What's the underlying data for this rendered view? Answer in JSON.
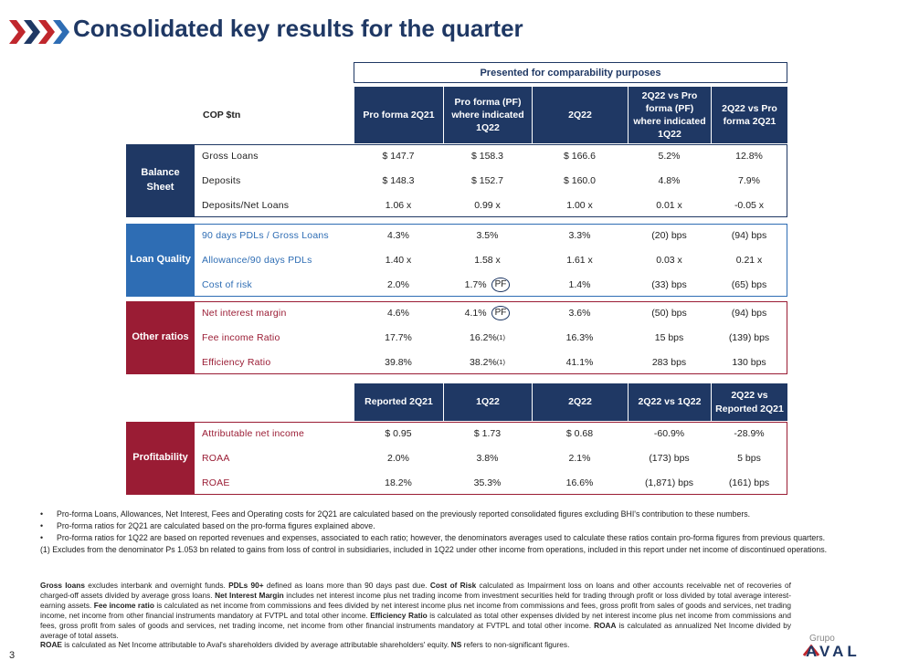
{
  "header": {
    "title": "Consolidated key results for the quarter"
  },
  "banner": "Presented for comparability purposes",
  "table1": {
    "unit_label": "COP $tn",
    "columns": [
      "Pro forma 2Q21",
      "Pro forma (PF) where indicated 1Q22",
      "2Q22",
      "2Q22 vs Pro forma (PF) where indicated 1Q22",
      "2Q22 vs Pro forma 2Q21"
    ],
    "groups": [
      {
        "label": "Balance Sheet",
        "color": "#1f3864",
        "text_color": "#222222",
        "rows": [
          {
            "label": "Gross Loans",
            "cells": [
              "$ 147.7",
              "$ 158.3",
              "$ 166.6",
              "5.2%",
              "12.8%"
            ]
          },
          {
            "label": "Deposits",
            "cells": [
              "$ 148.3",
              "$ 152.7",
              "$ 160.0",
              "4.8%",
              "7.9%"
            ]
          },
          {
            "label": "Deposits/Net Loans",
            "cells": [
              "1.06 x",
              "0.99 x",
              "1.00 x",
              "0.01 x",
              "-0.05 x"
            ]
          }
        ]
      },
      {
        "label": "Loan Quality",
        "color": "#2e6db4",
        "text_color": "#2e6db4",
        "rows": [
          {
            "label": "90 days PDLs / Gross Loans",
            "cells": [
              "4.3%",
              "3.5%",
              "3.3%",
              "(20) bps",
              "(94) bps"
            ]
          },
          {
            "label": "Allowance/90 days PDLs",
            "cells": [
              "1.40 x",
              "1.58 x",
              "1.61 x",
              "0.03 x",
              "0.21 x"
            ]
          },
          {
            "label": "Cost of risk",
            "cells": [
              "2.0%",
              "1.7%",
              "1.4%",
              "(33) bps",
              "(65) bps"
            ],
            "badge": "PF"
          }
        ]
      },
      {
        "label": "Other ratios",
        "color": "#9a1c34",
        "text_color": "#9a1c34",
        "rows": [
          {
            "label": "Net interest margin",
            "cells": [
              "4.6%",
              "4.1%",
              "3.6%",
              "(50) bps",
              "(94) bps"
            ],
            "badge": "PF"
          },
          {
            "label": "Fee income Ratio",
            "cells": [
              "17.7%",
              "16.2%",
              "16.3%",
              "15 bps",
              "(139) bps"
            ],
            "footnote": "(1)"
          },
          {
            "label": "Efficiency Ratio",
            "cells": [
              "39.8%",
              "38.2%",
              "41.1%",
              "283 bps",
              "130 bps"
            ],
            "footnote": "(1)"
          }
        ]
      }
    ]
  },
  "table2": {
    "columns": [
      "Reported 2Q21",
      "1Q22",
      "2Q22",
      "2Q22 vs 1Q22",
      "2Q22 vs Reported 2Q21"
    ],
    "groups": [
      {
        "label": "Profitability",
        "color": "#9a1c34",
        "text_color": "#9a1c34",
        "rows": [
          {
            "label": "Attributable net income",
            "cells": [
              "$ 0.95",
              "$ 1.73",
              "$ 0.68",
              "-60.9%",
              "-28.9%"
            ]
          },
          {
            "label": "ROAA",
            "cells": [
              "2.0%",
              "3.8%",
              "2.1%",
              "(173) bps",
              "5 bps"
            ]
          },
          {
            "label": "ROAE",
            "cells": [
              "18.2%",
              "35.3%",
              "16.6%",
              "(1,871) bps",
              "(161) bps"
            ]
          }
        ]
      }
    ]
  },
  "notes": {
    "bullets": [
      "Pro-forma Loans, Allowances, Net Interest, Fees and Operating costs for 2Q21 are calculated based on the previously reported consolidated figures excluding BHI's contribution to these numbers.",
      "Pro-forma ratios for 2Q21 are calculated based on the pro-forma figures explained above.",
      "Pro-forma ratios for 1Q22 are based on reported revenues and expenses, associated to each ratio; however, the denominators averages used to calculate these ratios contain pro-forma figures from previous quarters."
    ],
    "footnote": "(1) Excludes from the denominator Ps 1.053 bn related to gains from loss of control in subsidiaries, included in 1Q22 under other income from operations, included in this report under net income of discontinued operations."
  },
  "definitions": [
    [
      {
        "bold": true,
        "text": "Gross loans"
      },
      {
        "bold": false,
        "text": " excludes interbank and overnight funds. "
      },
      {
        "bold": true,
        "text": "PDLs 90+"
      },
      {
        "bold": false,
        "text": " defined as loans more than 90 days past due. "
      },
      {
        "bold": true,
        "text": "Cost of Risk"
      },
      {
        "bold": false,
        "text": " calculated as Impairment loss on loans and other accounts receivable net of recoveries of charged-off assets divided by average gross loans. "
      },
      {
        "bold": true,
        "text": "Net Interest Margin"
      },
      {
        "bold": false,
        "text": " includes net interest income plus net trading income from investment securities held for trading through profit or loss divided by total average interest-earning assets. "
      },
      {
        "bold": true,
        "text": "Fee income ratio"
      },
      {
        "bold": false,
        "text": " is calculated as net income from commissions and fees divided by net interest income plus net income from commissions and fees, gross profit from sales of goods and services, net trading income, net income from other financial instruments mandatory at FVTPL and total other income. "
      },
      {
        "bold": true,
        "text": "Efficiency Ratio"
      },
      {
        "bold": false,
        "text": " is calculated as total other expenses divided by net interest income plus net income from commissions and fees, gross profit from sales of goods and services, net trading income, net income from other financial instruments mandatory at FVTPL and total other income. "
      },
      {
        "bold": true,
        "text": "ROAA"
      },
      {
        "bold": false,
        "text": " is calculated as annualized Net Income divided by average of total assets."
      }
    ],
    [
      {
        "bold": true,
        "text": "ROAE"
      },
      {
        "bold": false,
        "text": " is calculated as Net Income attributable to Aval's shareholders divided by average attributable shareholders' equity. "
      },
      {
        "bold": true,
        "text": "NS"
      },
      {
        "bold": false,
        "text": " refers to non-significant figures."
      }
    ]
  ],
  "page_number": "3",
  "logo": {
    "small": "Grupo",
    "name": "AVAL"
  }
}
